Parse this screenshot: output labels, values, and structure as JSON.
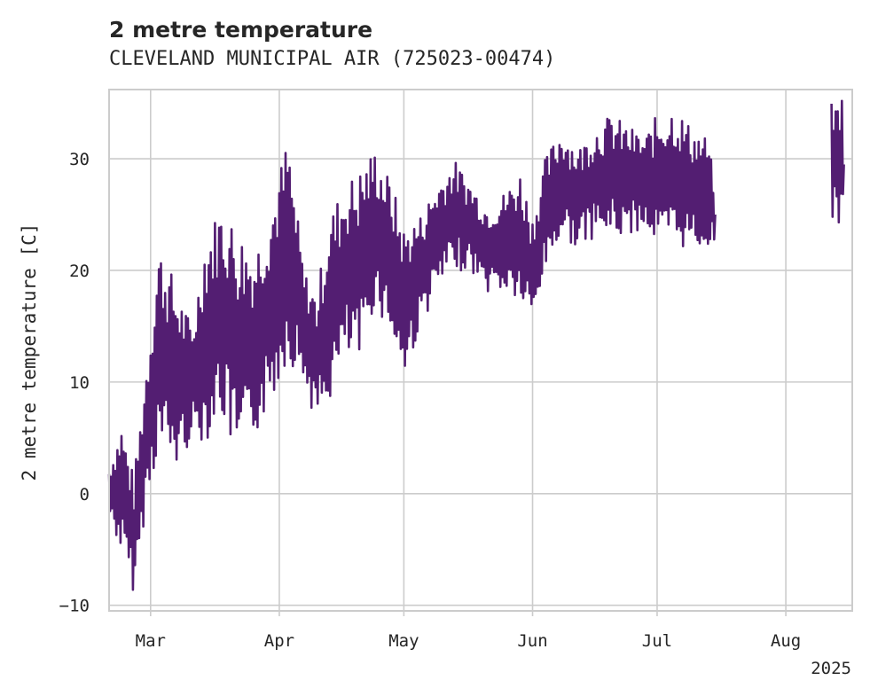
{
  "chart_data": {
    "type": "line",
    "title": "2 metre temperature",
    "subtitle": "CLEVELAND MUNICIPAL AIR (725023-00474)",
    "xlabel": "",
    "ylabel": "2 metre temperature [C]",
    "x_ticks": [
      "Mar",
      "Apr",
      "May",
      "Jun",
      "Jul",
      "Aug"
    ],
    "x_year_label": "2025",
    "y_ticks": [
      "-10",
      "0",
      "10",
      "20",
      "30"
    ],
    "ylim": [
      -10.5,
      36.2
    ],
    "xlim": [
      "2025-02-19",
      "2025-08-17"
    ],
    "grid": true,
    "series_color": "#531e72",
    "series": [
      {
        "x_start": "2025-02-19",
        "x_end": "2025-07-15",
        "segments": [
          [
            "2025-02-19",
            2.5,
            -2
          ],
          [
            "2025-02-22",
            6.5,
            -5.5
          ],
          [
            "2025-02-25",
            1.5,
            -9
          ],
          [
            "2025-02-28",
            12,
            -1
          ],
          [
            "2025-03-03",
            22.5,
            4
          ],
          [
            "2025-03-07",
            19,
            2
          ],
          [
            "2025-03-11",
            15,
            5
          ],
          [
            "2025-03-14",
            23,
            4.5
          ],
          [
            "2025-03-18",
            26,
            7
          ],
          [
            "2025-03-22",
            24,
            2
          ],
          [
            "2025-03-26",
            22,
            5
          ],
          [
            "2025-03-30",
            26,
            8
          ],
          [
            "2025-04-03",
            32,
            12
          ],
          [
            "2025-04-07",
            20,
            10
          ],
          [
            "2025-04-10",
            18,
            6
          ],
          [
            "2025-04-13",
            25,
            8
          ],
          [
            "2025-04-17",
            28,
            12
          ],
          [
            "2025-04-20",
            29,
            11
          ],
          [
            "2025-04-24",
            31,
            17
          ],
          [
            "2025-04-28",
            28,
            14
          ],
          [
            "2025-05-01",
            24,
            10
          ],
          [
            "2025-05-05",
            25,
            15
          ],
          [
            "2025-05-09",
            28,
            18
          ],
          [
            "2025-05-13",
            30,
            20
          ],
          [
            "2025-05-17",
            28,
            20
          ],
          [
            "2025-05-21",
            26,
            18
          ],
          [
            "2025-05-25",
            27,
            18
          ],
          [
            "2025-05-29",
            29,
            17
          ],
          [
            "2025-06-01",
            25,
            15
          ],
          [
            "2025-06-04",
            30,
            20
          ],
          [
            "2025-06-08",
            33,
            23
          ],
          [
            "2025-06-12",
            31,
            22
          ],
          [
            "2025-06-16",
            33,
            23
          ],
          [
            "2025-06-20",
            34,
            23
          ],
          [
            "2025-06-24",
            33,
            23
          ],
          [
            "2025-06-28",
            32,
            24
          ],
          [
            "2025-07-01",
            34,
            22
          ],
          [
            "2025-07-05",
            35,
            22
          ],
          [
            "2025-07-09",
            33,
            22
          ],
          [
            "2025-07-13",
            32,
            22
          ],
          [
            "2025-07-15",
            28,
            22
          ]
        ]
      },
      {
        "x_start": "2025-08-12",
        "x_end": "2025-08-15",
        "segments": [
          [
            "2025-08-12",
            35,
            25
          ],
          [
            "2025-08-13",
            35,
            24
          ],
          [
            "2025-08-14",
            36,
            24
          ],
          [
            "2025-08-15",
            36,
            23
          ]
        ]
      }
    ]
  }
}
